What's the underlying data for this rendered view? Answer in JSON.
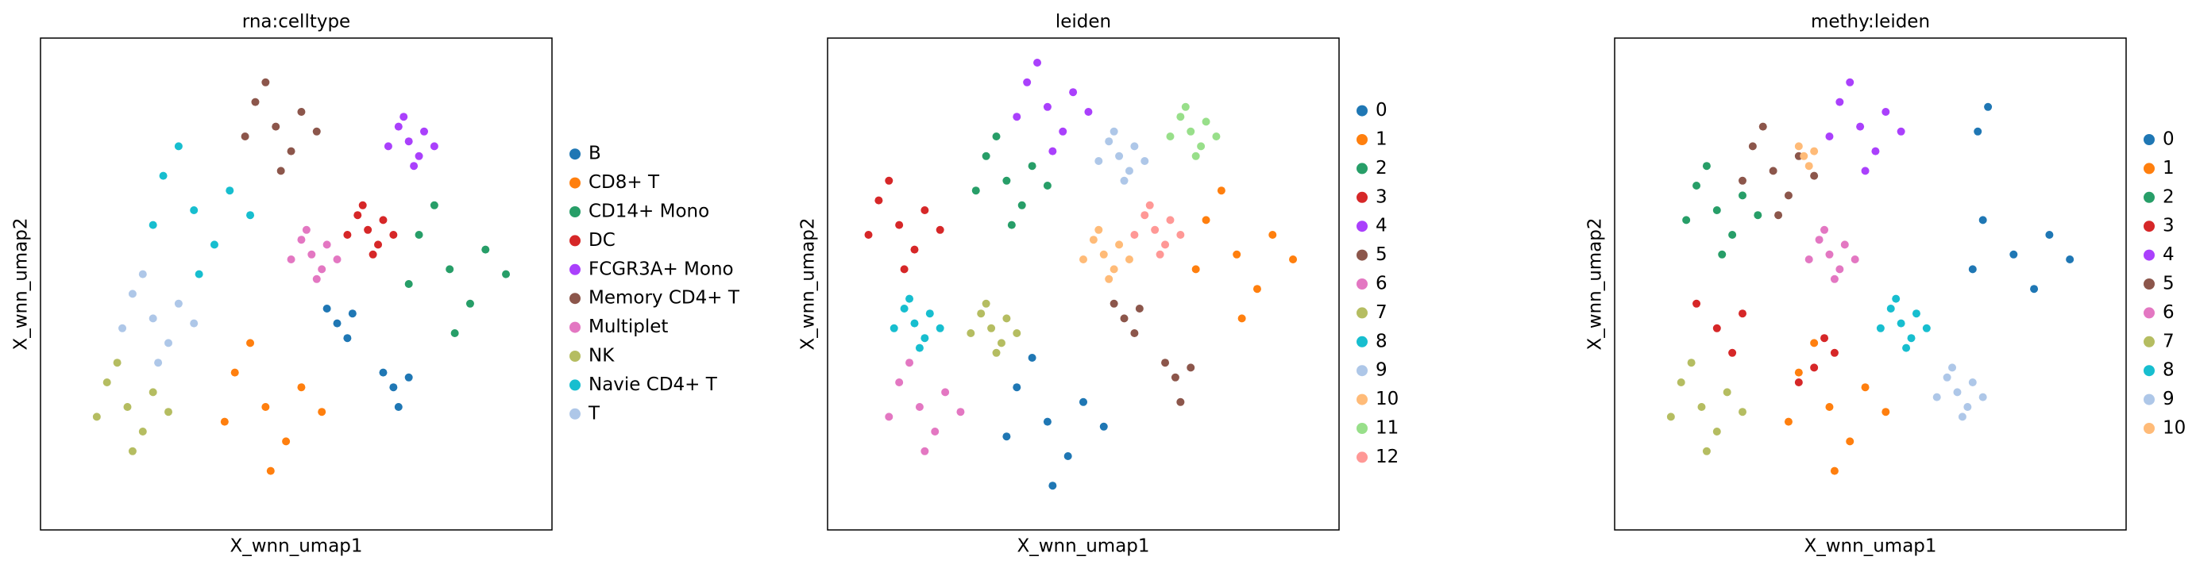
{
  "chart_data": [
    {
      "type": "scatter",
      "title": "rna:celltype",
      "xlabel": "X_wnn_umap1",
      "ylabel": "X_wnn_umap2",
      "xlim": [
        0,
        10
      ],
      "ylim": [
        0,
        10
      ],
      "series": [
        {
          "name": "B",
          "color": "#1f77b4",
          "x": [
            5.8,
            6.1,
            5.6,
            6.0,
            6.9,
            7.2,
            6.7,
            7.0
          ],
          "y": [
            4.2,
            4.4,
            4.5,
            3.9,
            2.9,
            3.1,
            3.2,
            2.5
          ]
        },
        {
          "name": "CD8+ T",
          "color": "#ff7f0e",
          "x": [
            4.4,
            5.1,
            3.8,
            4.8,
            3.6,
            5.5,
            4.1,
            4.5
          ],
          "y": [
            2.5,
            2.9,
            3.2,
            1.8,
            2.2,
            2.4,
            3.8,
            1.2
          ]
        },
        {
          "name": "CD14+ Mono",
          "color": "#279e68",
          "x": [
            8.0,
            8.7,
            7.4,
            8.4,
            7.2,
            9.1,
            7.7,
            8.1
          ],
          "y": [
            5.3,
            5.7,
            6.0,
            4.6,
            5.0,
            5.2,
            6.6,
            4.0
          ]
        },
        {
          "name": "DC",
          "color": "#d62728",
          "x": [
            6.4,
            6.7,
            6.2,
            6.6,
            6.0,
            6.9,
            6.3,
            6.5
          ],
          "y": [
            6.1,
            6.3,
            6.4,
            5.8,
            6.0,
            6.0,
            6.6,
            5.6
          ]
        },
        {
          "name": "FCGR3A+ Mono",
          "color": "#aa40fc",
          "x": [
            7.2,
            7.5,
            7.0,
            7.4,
            6.8,
            7.7,
            7.1,
            7.3
          ],
          "y": [
            7.9,
            8.1,
            8.2,
            7.6,
            7.8,
            7.8,
            8.4,
            7.4
          ]
        },
        {
          "name": "Memory CD4+ T",
          "color": "#8c564b",
          "x": [
            4.6,
            5.1,
            4.2,
            4.9,
            4.0,
            5.4,
            4.4,
            4.7
          ],
          "y": [
            8.2,
            8.5,
            8.7,
            7.7,
            8.0,
            8.1,
            9.1,
            7.3
          ]
        },
        {
          "name": "Multiplet",
          "color": "#e377c2",
          "x": [
            5.3,
            5.6,
            5.1,
            5.5,
            4.9,
            5.8,
            5.2,
            5.4
          ],
          "y": [
            5.6,
            5.8,
            5.9,
            5.3,
            5.5,
            5.5,
            6.1,
            5.1
          ]
        },
        {
          "name": "NK",
          "color": "#b5bd61",
          "x": [
            1.7,
            2.2,
            1.3,
            2.0,
            1.1,
            2.5,
            1.5,
            1.8
          ],
          "y": [
            2.5,
            2.8,
            3.0,
            2.0,
            2.3,
            2.4,
            3.4,
            1.6
          ]
        },
        {
          "name": "Navie CD4+ T",
          "color": "#17becf",
          "x": [
            3.0,
            3.7,
            2.4,
            3.4,
            2.2,
            4.1,
            2.7,
            3.1
          ],
          "y": [
            6.5,
            6.9,
            7.2,
            5.8,
            6.2,
            6.4,
            7.8,
            5.2
          ]
        },
        {
          "name": "T",
          "color": "#aec7e8",
          "x": [
            2.2,
            2.7,
            1.8,
            2.5,
            1.6,
            3.0,
            2.0,
            2.3
          ],
          "y": [
            4.3,
            4.6,
            4.8,
            3.8,
            4.1,
            4.2,
            5.2,
            3.4
          ]
        }
      ]
    },
    {
      "type": "scatter",
      "title": "leiden",
      "xlabel": "X_wnn_umap1",
      "ylabel": "X_wnn_umap2",
      "xlim": [
        0,
        10
      ],
      "ylim": [
        0,
        10
      ],
      "series": [
        {
          "name": "0",
          "color": "#1f77b4",
          "x": [
            4.3,
            5.0,
            3.7,
            4.7,
            3.5,
            5.4,
            4.0,
            4.4
          ],
          "y": [
            2.2,
            2.6,
            2.9,
            1.5,
            1.9,
            2.1,
            3.5,
            0.9
          ]
        },
        {
          "name": "1",
          "color": "#ff7f0e",
          "x": [
            8.0,
            8.7,
            7.4,
            8.4,
            7.2,
            9.1,
            7.7,
            8.1
          ],
          "y": [
            5.6,
            6.0,
            6.3,
            4.9,
            5.3,
            5.5,
            6.9,
            4.3
          ]
        },
        {
          "name": "2",
          "color": "#279e68",
          "x": [
            3.5,
            4.0,
            3.1,
            3.8,
            2.9,
            4.3,
            3.3,
            3.6
          ],
          "y": [
            7.1,
            7.4,
            7.6,
            6.6,
            6.9,
            7.0,
            8.0,
            6.2
          ]
        },
        {
          "name": "3",
          "color": "#d62728",
          "x": [
            1.4,
            1.9,
            1.0,
            1.7,
            0.8,
            2.2,
            1.2,
            1.5
          ],
          "y": [
            6.2,
            6.5,
            6.7,
            5.7,
            6.0,
            6.1,
            7.1,
            5.3
          ]
        },
        {
          "name": "4",
          "color": "#aa40fc",
          "x": [
            4.3,
            4.8,
            3.9,
            4.6,
            3.7,
            5.1,
            4.1,
            4.4
          ],
          "y": [
            8.6,
            8.9,
            9.1,
            8.1,
            8.4,
            8.5,
            9.5,
            7.7
          ]
        },
        {
          "name": "5",
          "color": "#8c564b",
          "x": [
            5.8,
            6.1,
            5.6,
            6.0,
            6.8,
            7.1,
            6.6,
            6.9
          ],
          "y": [
            4.3,
            4.5,
            4.6,
            4.0,
            3.1,
            3.3,
            3.4,
            2.6
          ]
        },
        {
          "name": "6",
          "color": "#e377c2",
          "x": [
            1.8,
            2.3,
            1.4,
            2.1,
            1.2,
            2.6,
            1.6,
            1.9
          ],
          "y": [
            2.5,
            2.8,
            3.0,
            2.0,
            2.3,
            2.4,
            3.4,
            1.6
          ]
        },
        {
          "name": "7",
          "color": "#b5bd61",
          "x": [
            3.2,
            3.5,
            3.0,
            3.4,
            2.8,
            3.7,
            3.1,
            3.3
          ],
          "y": [
            4.1,
            4.3,
            4.4,
            3.8,
            4.0,
            4.0,
            4.6,
            3.6
          ]
        },
        {
          "name": "8",
          "color": "#17becf",
          "x": [
            1.7,
            2.0,
            1.5,
            1.9,
            1.3,
            2.2,
            1.6,
            1.8
          ],
          "y": [
            4.2,
            4.4,
            4.5,
            3.9,
            4.1,
            4.1,
            4.7,
            3.7
          ]
        },
        {
          "name": "9",
          "color": "#aec7e8",
          "x": [
            5.7,
            6.0,
            5.5,
            5.9,
            5.3,
            6.2,
            5.6,
            5.8
          ],
          "y": [
            7.6,
            7.8,
            7.9,
            7.3,
            7.5,
            7.5,
            8.1,
            7.1
          ]
        },
        {
          "name": "10",
          "color": "#ffbb78",
          "x": [
            5.4,
            5.7,
            5.2,
            5.6,
            5.0,
            5.9,
            5.3,
            5.5
          ],
          "y": [
            5.6,
            5.8,
            5.9,
            5.3,
            5.5,
            5.5,
            6.1,
            5.1
          ]
        },
        {
          "name": "11",
          "color": "#98df8a",
          "x": [
            7.1,
            7.4,
            6.9,
            7.3,
            6.7,
            7.6,
            7.0,
            7.2
          ],
          "y": [
            8.1,
            8.3,
            8.4,
            7.8,
            8.0,
            8.0,
            8.6,
            7.6
          ]
        },
        {
          "name": "12",
          "color": "#ff9896",
          "x": [
            6.4,
            6.7,
            6.2,
            6.6,
            6.0,
            6.9,
            6.3,
            6.5
          ],
          "y": [
            6.1,
            6.3,
            6.4,
            5.8,
            6.0,
            6.0,
            6.6,
            5.6
          ]
        }
      ]
    },
    {
      "type": "scatter",
      "title": "methy:leiden",
      "xlabel": "X_wnn_umap1",
      "ylabel": "X_wnn_umap2",
      "xlim": [
        0,
        10
      ],
      "ylim": [
        0,
        10
      ],
      "series": [
        {
          "name": "0",
          "color": "#1f77b4",
          "x": [
            7.8,
            8.5,
            7.2,
            8.2,
            7.0,
            8.9,
            7.1,
            7.3
          ],
          "y": [
            5.6,
            6.0,
            6.3,
            4.9,
            5.3,
            5.5,
            8.1,
            8.6
          ]
        },
        {
          "name": "1",
          "color": "#ff7f0e",
          "x": [
            4.2,
            4.9,
            3.6,
            4.6,
            3.4,
            5.3,
            3.9,
            4.3
          ],
          "y": [
            2.5,
            2.9,
            3.2,
            1.8,
            2.2,
            2.4,
            3.8,
            1.2
          ]
        },
        {
          "name": "2",
          "color": "#279e68",
          "x": [
            2.0,
            2.5,
            1.6,
            2.3,
            1.4,
            2.8,
            1.8,
            2.1
          ],
          "y": [
            6.5,
            6.8,
            7.0,
            6.0,
            6.3,
            6.4,
            7.4,
            5.6
          ]
        },
        {
          "name": "3",
          "color": "#d62728",
          "x": [
            2.0,
            2.5,
            1.6,
            2.3,
            3.9,
            4.3,
            3.6,
            4.1
          ],
          "y": [
            4.1,
            4.4,
            4.6,
            3.6,
            3.3,
            3.6,
            3.0,
            3.9
          ]
        },
        {
          "name": "4",
          "color": "#aa40fc",
          "x": [
            4.8,
            5.3,
            4.4,
            5.1,
            4.2,
            5.6,
            4.6,
            4.9
          ],
          "y": [
            8.2,
            8.5,
            8.7,
            7.7,
            8.0,
            8.1,
            9.1,
            7.3
          ]
        },
        {
          "name": "5",
          "color": "#8c564b",
          "x": [
            3.1,
            3.6,
            2.7,
            3.4,
            2.5,
            3.9,
            2.9,
            3.2
          ],
          "y": [
            7.3,
            7.6,
            7.8,
            6.8,
            7.1,
            7.2,
            8.2,
            6.4
          ]
        },
        {
          "name": "6",
          "color": "#e377c2",
          "x": [
            4.2,
            4.5,
            4.0,
            4.4,
            3.8,
            4.7,
            4.1,
            4.3
          ],
          "y": [
            5.6,
            5.8,
            5.9,
            5.3,
            5.5,
            5.5,
            6.1,
            5.1
          ]
        },
        {
          "name": "7",
          "color": "#b5bd61",
          "x": [
            1.7,
            2.2,
            1.3,
            2.0,
            1.1,
            2.5,
            1.5,
            1.8
          ],
          "y": [
            2.5,
            2.8,
            3.0,
            2.0,
            2.3,
            2.4,
            3.4,
            1.6
          ]
        },
        {
          "name": "8",
          "color": "#17becf",
          "x": [
            5.6,
            5.9,
            5.4,
            5.8,
            5.2,
            6.1,
            5.5,
            5.7
          ],
          "y": [
            4.2,
            4.4,
            4.5,
            3.9,
            4.1,
            4.1,
            4.7,
            3.7
          ]
        },
        {
          "name": "9",
          "color": "#aec7e8",
          "x": [
            6.7,
            7.0,
            6.5,
            6.9,
            6.3,
            7.2,
            6.6,
            6.8
          ],
          "y": [
            2.8,
            3.0,
            3.1,
            2.5,
            2.7,
            2.7,
            3.3,
            2.3
          ]
        },
        {
          "name": "10",
          "color": "#ffbb78",
          "x": [
            3.7,
            3.9,
            3.6,
            3.8
          ],
          "y": [
            7.6,
            7.7,
            7.8,
            7.4
          ]
        }
      ]
    }
  ]
}
